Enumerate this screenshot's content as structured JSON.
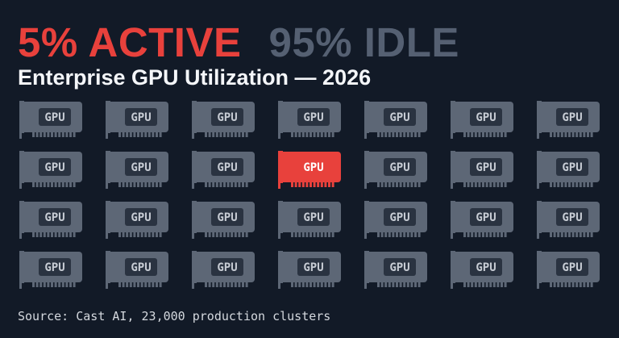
{
  "headline": {
    "active_text": "5% ACTIVE",
    "idle_text": "95% IDLE",
    "active_color": "#e8413c",
    "idle_color": "#556072"
  },
  "subtitle": "Enterprise GPU Utilization — 2026",
  "grid": {
    "rows": 4,
    "columns": 7,
    "card_label": "GPU",
    "card_icon": "gpu-card-icon",
    "active_cards": [
      {
        "row": 2,
        "column": 4
      }
    ],
    "idle_color": "#5d6776",
    "active_color": "#e8413c"
  },
  "source": "Source: Cast AI, 23,000 production clusters"
}
